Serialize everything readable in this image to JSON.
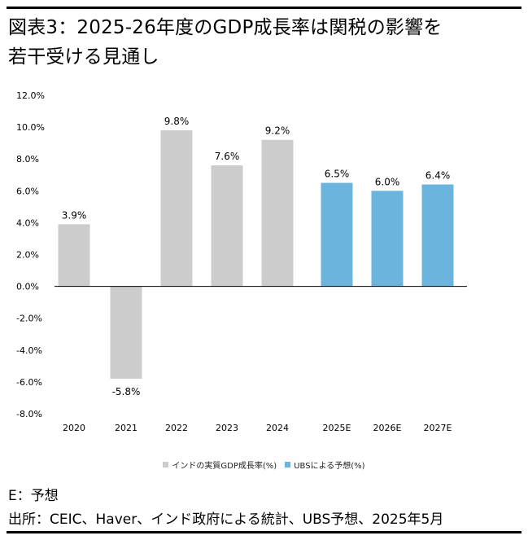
{
  "title_line1": "図表3：2025-26年度のGDP成長率は関税の影響を",
  "title_line2": "若干受ける見通し",
  "note": "E：予想",
  "source": "出所：CEIC、Haver、インド政府による統計、UBS予想、2025年5月",
  "colors": {
    "actual": "#cccccc",
    "forecast": "#6bb4dd",
    "axis": "#000000"
  },
  "chart_data": {
    "type": "bar",
    "categories": [
      "2020",
      "2021",
      "2022",
      "2023",
      "2024",
      "2025E",
      "2026E",
      "2027E"
    ],
    "values": [
      3.9,
      -5.8,
      9.8,
      7.6,
      9.2,
      6.5,
      6.0,
      6.4
    ],
    "value_labels": [
      "3.9%",
      "-5.8%",
      "9.8%",
      "7.6%",
      "9.2%",
      "6.5%",
      "6.0%",
      "6.4%"
    ],
    "series_type": [
      "actual",
      "actual",
      "actual",
      "actual",
      "actual",
      "forecast",
      "forecast",
      "forecast"
    ],
    "ylim": [
      -8,
      12
    ],
    "yticks": [
      12,
      10,
      8,
      6,
      4,
      2,
      0,
      -2,
      -4,
      -6,
      -8
    ],
    "ytick_labels": [
      "12.0%",
      "10.0%",
      "8.0%",
      "6.0%",
      "4.0%",
      "2.0%",
      "0.0%",
      "-2.0%",
      "-4.0%",
      "-6.0%",
      "-8.0%"
    ],
    "legend": [
      {
        "key": "actual",
        "label": "インドの実質GDP成長率(%)"
      },
      {
        "key": "forecast",
        "label": "UBSによる予想(%)"
      }
    ]
  }
}
